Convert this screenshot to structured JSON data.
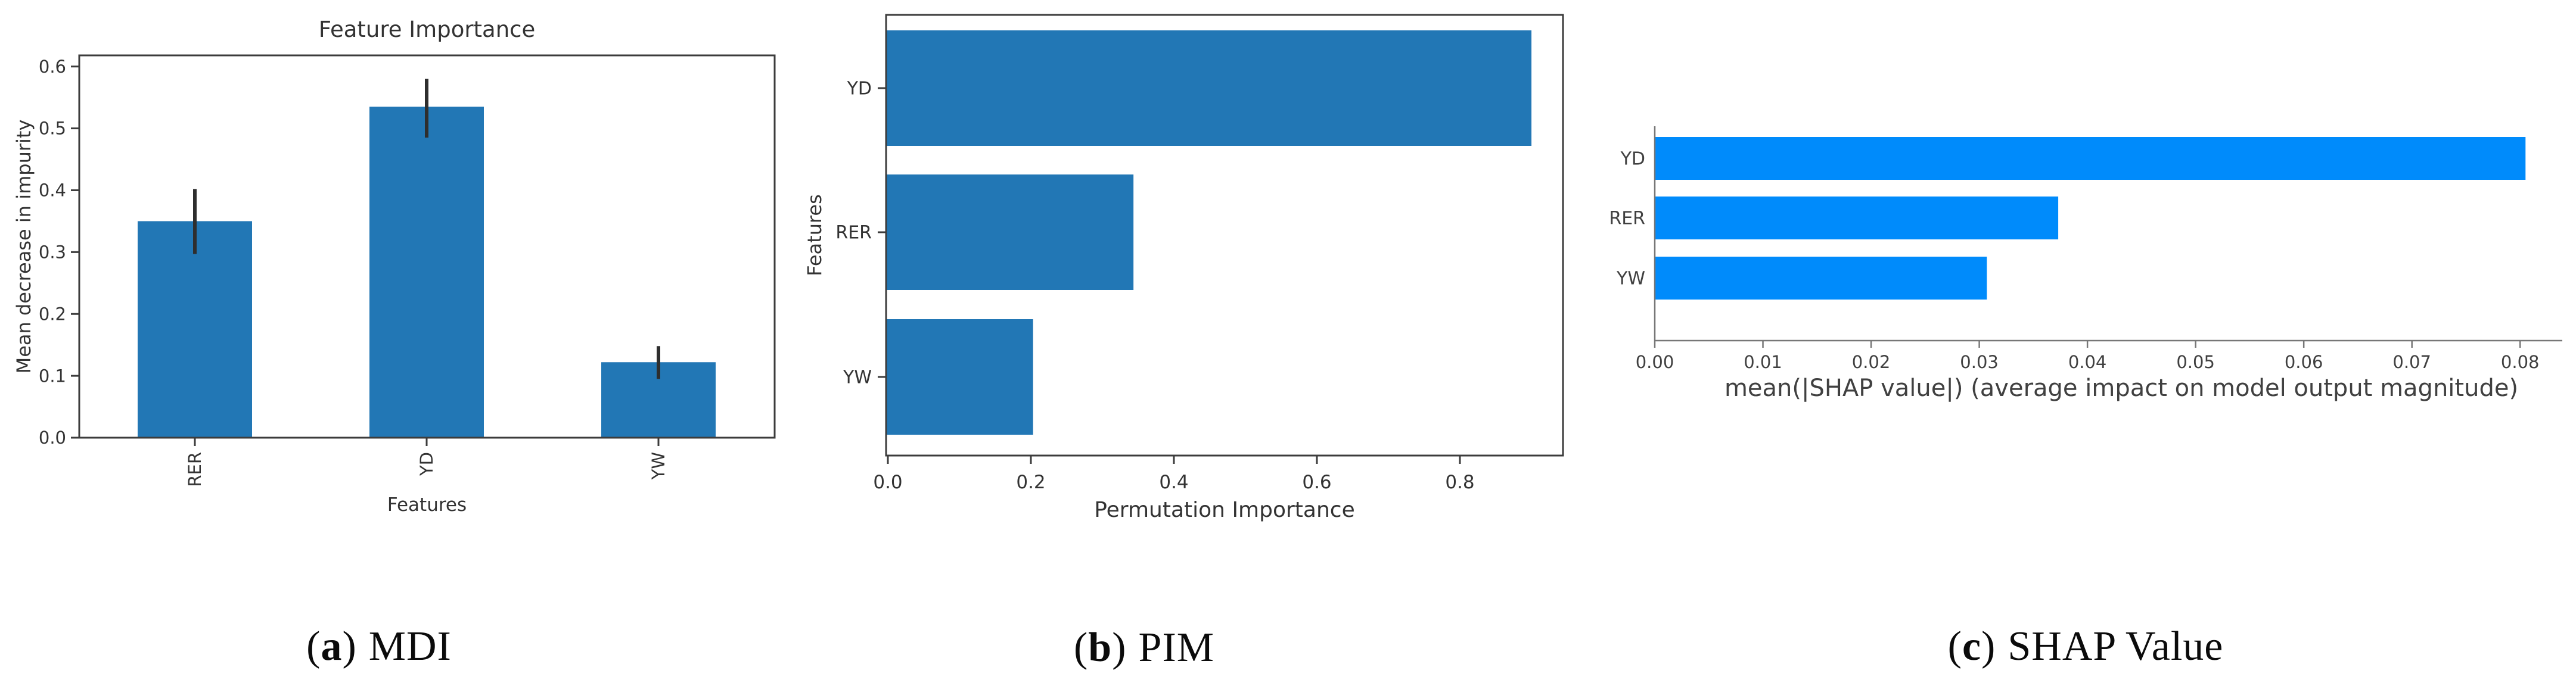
{
  "figure": {
    "background": "#ffffff",
    "description_texts": {
      "panel_a_title": "Feature Importance",
      "panel_a_xlabel": "Features",
      "panel_a_ylabel": "Mean decrease in impurity",
      "panel_b_xlabel": "Permutation Importance",
      "panel_b_ylabel": "Features",
      "panel_c_xlabel": "mean(|SHAP value|) (average impact on model output magnitude)"
    }
  },
  "captions": [
    {
      "open": "(",
      "letter": "a",
      "close": ")",
      "label": "MDI"
    },
    {
      "open": "(",
      "letter": "b",
      "close": ")",
      "label": "PIM"
    },
    {
      "open": "(",
      "letter": "c",
      "close": ")",
      "label": "SHAP Value"
    }
  ],
  "chart_data": [
    {
      "panel": "a",
      "type": "bar",
      "title": "Feature Importance",
      "xlabel": "Features",
      "ylabel": "Mean decrease in impurity",
      "categories": [
        "RER",
        "YD",
        "YW"
      ],
      "values": [
        0.35,
        0.535,
        0.122
      ],
      "error_low": [
        0.297,
        0.485,
        0.095
      ],
      "error_high": [
        0.402,
        0.58,
        0.148
      ],
      "ylim": [
        0,
        0.618
      ],
      "yticks": [
        0,
        0.1,
        0.2,
        0.3,
        0.4,
        0.5,
        0.6
      ],
      "ytick_decimals": 1,
      "xtick_rotation": 90,
      "grid": false,
      "legend": "none",
      "bar_color": "#2277b5",
      "error_color": "#2e2e2e",
      "spine_color": "#3c3c3c",
      "text_color": "#333333"
    },
    {
      "panel": "b",
      "type": "barh",
      "title": "",
      "xlabel": "Permutation Importance",
      "ylabel": "Features",
      "categories": [
        "YD",
        "RER",
        "YW"
      ],
      "values": [
        0.9,
        0.345,
        0.205
      ],
      "xlim": [
        0,
        0.944
      ],
      "xticks": [
        0,
        0.2,
        0.4,
        0.6,
        0.8
      ],
      "xtick_decimals": 1,
      "grid": false,
      "legend": "none",
      "bar_color": "#2277b5",
      "spine_color": "#3c3c3c",
      "text_color": "#333333"
    },
    {
      "panel": "c",
      "type": "barh",
      "title": "",
      "xlabel": "mean(|SHAP value|) (average impact on model output magnitude)",
      "ylabel": "",
      "categories": [
        "YD",
        "RER",
        "YW"
      ],
      "values": [
        0.0805,
        0.0373,
        0.0307
      ],
      "xlim": [
        0,
        0.0839
      ],
      "xticks": [
        0,
        0.01,
        0.02,
        0.03,
        0.04,
        0.05,
        0.06,
        0.07,
        0.08
      ],
      "xtick_decimals": 2,
      "grid": false,
      "legend": "none",
      "bar_color": "#008bfb",
      "spine_color": "#777777",
      "text_color": "#404040"
    }
  ]
}
